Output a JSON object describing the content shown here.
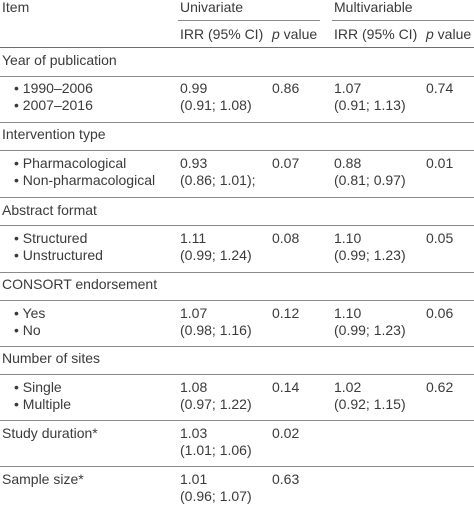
{
  "header": {
    "item": "Item",
    "univariate": "Univariate",
    "multivariable": "Multivariable",
    "irr": "IRR (95% CI)",
    "p_italic": "p",
    "p_rest": " value"
  },
  "groups": [
    {
      "title": "Year of publication",
      "levels": [
        "1990–2006",
        "2007–2016"
      ],
      "uni_irr": "0.99",
      "uni_ci": "(0.91; 1.08)",
      "uni_p": "0.86",
      "multi_irr": "1.07",
      "multi_ci": "(0.91; 1.13)",
      "multi_p": "0.74"
    },
    {
      "title": "Intervention type",
      "levels": [
        "Pharmacological",
        "Non-pharmacological"
      ],
      "uni_irr": "0.93",
      "uni_ci": "(0.86; 1.01);",
      "uni_p": "0.07",
      "multi_irr": "0.88",
      "multi_ci": "(0.81; 0.97)",
      "multi_p": "0.01"
    },
    {
      "title": "Abstract format",
      "levels": [
        "Structured",
        "Unstructured"
      ],
      "uni_irr": "1.11",
      "uni_ci": "(0.99; 1.24)",
      "uni_p": "0.08",
      "multi_irr": "1.10",
      "multi_ci": "(0.99; 1.23)",
      "multi_p": "0.05"
    },
    {
      "title": "CONSORT endorsement",
      "levels": [
        "Yes",
        "No"
      ],
      "uni_irr": "1.07",
      "uni_ci": "(0.98; 1.16)",
      "uni_p": "0.12",
      "multi_irr": "1.10",
      "multi_ci": "(0.99; 1.23)",
      "multi_p": "0.06"
    },
    {
      "title": "Number of sites",
      "levels": [
        "Single",
        "Multiple"
      ],
      "uni_irr": "1.08",
      "uni_ci": "(0.97; 1.22)",
      "uni_p": "0.14",
      "multi_irr": "1.02",
      "multi_ci": "(0.92; 1.15)",
      "multi_p": "0.62"
    }
  ],
  "single_rows": [
    {
      "title": "Study duration*",
      "uni_irr": "1.03",
      "uni_ci": "(1.01; 1.06)",
      "uni_p": "0.02"
    },
    {
      "title": "Sample size*",
      "uni_irr": "1.01",
      "uni_ci": "(0.96; 1.07)",
      "uni_p": "0.63"
    }
  ]
}
